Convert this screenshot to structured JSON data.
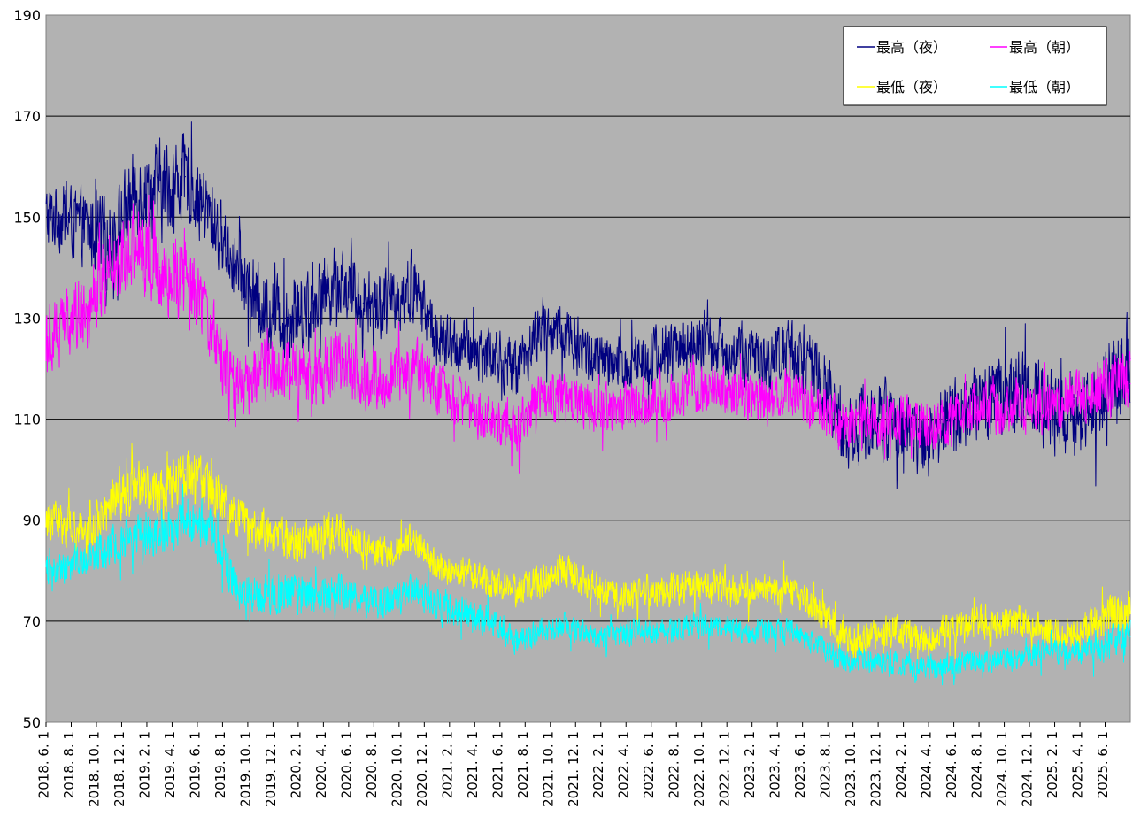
{
  "chart_data": {
    "type": "line",
    "title": "",
    "xlabel": "",
    "ylabel": "",
    "ylim": [
      50,
      190
    ],
    "yticks": [
      50,
      70,
      90,
      110,
      130,
      150,
      170,
      190
    ],
    "grid": "horizontal",
    "legend_position": "top-right",
    "plot_background": "#b2b2b2",
    "xticks": [
      "2018. 6. 1",
      "2018. 8. 1",
      "2018. 10. 1",
      "2018. 12. 1",
      "2019. 2. 1",
      "2019. 4. 1",
      "2019. 6. 1",
      "2019. 8. 1",
      "2019. 10. 1",
      "2019. 12. 1",
      "2020. 2. 1",
      "2020. 4. 1",
      "2020. 6. 1",
      "2020. 8. 1",
      "2020. 10. 1",
      "2020. 12. 1",
      "2021. 2. 1",
      "2021. 4. 1",
      "2021. 6. 1",
      "2021. 8. 1",
      "2021. 10. 1",
      "2021. 12. 1",
      "2022. 2. 1",
      "2022. 4. 1",
      "2022. 6. 1",
      "2022. 8. 1",
      "2022. 10. 1",
      "2022. 12. 1",
      "2023. 2. 1",
      "2023. 4. 1",
      "2023. 6. 1",
      "2023. 8. 1",
      "2023. 10. 1",
      "2023. 12. 1",
      "2024. 2. 1",
      "2024. 4. 1",
      "2024. 6. 1",
      "2024. 8. 1",
      "2024. 10. 1",
      "2024. 12. 1",
      "2025. 2. 1",
      "2025. 4. 1",
      "2025. 6. 1"
    ],
    "x_start": "2018-06-01",
    "x_end": "2025-07-15",
    "series": [
      {
        "name": "最高（夜）",
        "color": "#000080",
        "dates": [
          "2018-07-01",
          "2018-09-01",
          "2018-11-01",
          "2019-01-01",
          "2019-03-01",
          "2019-05-01",
          "2019-07-01",
          "2019-09-01",
          "2019-11-01",
          "2020-01-01",
          "2020-03-01",
          "2020-05-01",
          "2020-07-01",
          "2020-09-01",
          "2020-11-01",
          "2021-01-01",
          "2021-03-01",
          "2021-05-01",
          "2021-07-01",
          "2021-09-01",
          "2021-11-01",
          "2022-01-01",
          "2022-03-01",
          "2022-05-01",
          "2022-07-01",
          "2022-09-01",
          "2022-11-01",
          "2023-01-01",
          "2023-03-01",
          "2023-05-01",
          "2023-07-01",
          "2023-09-01",
          "2023-11-01",
          "2024-01-01",
          "2024-03-01",
          "2024-05-01",
          "2024-07-01",
          "2024-09-01",
          "2024-11-01",
          "2025-01-01",
          "2025-03-01",
          "2025-05-01",
          "2025-07-15"
        ],
        "values": [
          150,
          148,
          145,
          155,
          155,
          158,
          150,
          140,
          132,
          130,
          133,
          138,
          133,
          133,
          136,
          125,
          124,
          123,
          120,
          128,
          127,
          122,
          120,
          122,
          123,
          125,
          124,
          122,
          122,
          124,
          118,
          107,
          110,
          110,
          106,
          109,
          113,
          114,
          116,
          113,
          110,
          115,
          122
        ],
        "range": [
          8,
          9,
          10,
          10,
          12,
          10,
          9,
          8,
          9,
          9,
          9,
          9,
          8,
          8,
          8,
          7,
          7,
          7,
          7,
          7,
          7,
          7,
          7,
          7,
          8,
          7,
          7,
          7,
          7,
          8,
          9,
          9,
          10,
          9,
          9,
          10,
          10,
          10,
          10,
          10,
          10,
          11,
          12
        ]
      },
      {
        "name": "最高（朝）",
        "color": "#ff00ff",
        "dates": [
          "2018-07-01",
          "2018-09-01",
          "2018-11-01",
          "2019-01-01",
          "2019-03-01",
          "2019-05-01",
          "2019-07-01",
          "2019-09-01",
          "2019-11-01",
          "2020-01-01",
          "2020-03-01",
          "2020-05-01",
          "2020-07-01",
          "2020-09-01",
          "2020-11-01",
          "2021-01-01",
          "2021-03-01",
          "2021-05-01",
          "2021-07-01",
          "2021-09-01",
          "2021-11-01",
          "2022-01-01",
          "2022-03-01",
          "2022-05-01",
          "2022-07-01",
          "2022-09-01",
          "2022-11-01",
          "2023-01-01",
          "2023-03-01",
          "2023-05-01",
          "2023-07-01",
          "2023-09-01",
          "2023-11-01",
          "2024-01-01",
          "2024-03-01",
          "2024-05-01",
          "2024-07-01",
          "2024-09-01",
          "2024-11-01",
          "2025-01-01",
          "2025-03-01",
          "2025-05-01",
          "2025-07-15"
        ],
        "values": [
          128,
          132,
          140,
          145,
          140,
          138,
          128,
          115,
          120,
          120,
          119,
          122,
          118,
          118,
          121,
          116,
          113,
          110,
          108,
          114,
          114,
          112,
          112,
          113,
          114,
          116,
          116,
          114,
          114,
          115,
          112,
          108,
          110,
          110,
          108,
          110,
          112,
          112,
          112,
          112,
          114,
          116,
          117
        ],
        "range": [
          9,
          9,
          10,
          10,
          11,
          10,
          9,
          8,
          8,
          8,
          8,
          8,
          7,
          7,
          7,
          6,
          6,
          6,
          6,
          6,
          6,
          6,
          6,
          6,
          6,
          6,
          6,
          6,
          6,
          6,
          6,
          6,
          6,
          6,
          6,
          6,
          6,
          6,
          6,
          6,
          6,
          7,
          8
        ]
      },
      {
        "name": "最低（夜）",
        "color": "#ffff00",
        "dates": [
          "2018-07-01",
          "2018-09-01",
          "2018-11-01",
          "2019-01-01",
          "2019-03-01",
          "2019-05-01",
          "2019-07-01",
          "2019-09-01",
          "2019-11-01",
          "2020-01-01",
          "2020-03-01",
          "2020-05-01",
          "2020-07-01",
          "2020-09-01",
          "2020-11-01",
          "2021-01-01",
          "2021-03-01",
          "2021-05-01",
          "2021-07-01",
          "2021-09-01",
          "2021-11-01",
          "2022-01-01",
          "2022-03-01",
          "2022-05-01",
          "2022-07-01",
          "2022-09-01",
          "2022-11-01",
          "2023-01-01",
          "2023-03-01",
          "2023-05-01",
          "2023-07-01",
          "2023-09-01",
          "2023-11-01",
          "2024-01-01",
          "2024-03-01",
          "2024-05-01",
          "2024-07-01",
          "2024-09-01",
          "2024-11-01",
          "2025-01-01",
          "2025-03-01",
          "2025-05-01",
          "2025-07-15"
        ],
        "values": [
          90,
          88,
          92,
          97,
          95,
          100,
          96,
          90,
          88,
          86,
          86,
          88,
          84,
          84,
          86,
          80,
          80,
          78,
          76,
          78,
          80,
          77,
          75,
          76,
          76,
          77,
          77,
          76,
          76,
          76,
          72,
          66,
          67,
          68,
          66,
          68,
          70,
          69,
          70,
          68,
          67,
          70,
          72
        ],
        "range": [
          5,
          5,
          6,
          6,
          6,
          6,
          6,
          5,
          5,
          5,
          5,
          5,
          5,
          4,
          4,
          4,
          4,
          4,
          4,
          4,
          4,
          4,
          4,
          4,
          4,
          4,
          4,
          4,
          4,
          4,
          4,
          4,
          4,
          4,
          4,
          4,
          4,
          4,
          4,
          4,
          4,
          5,
          6
        ]
      },
      {
        "name": "最低（朝）",
        "color": "#00ffff",
        "dates": [
          "2018-07-01",
          "2018-09-01",
          "2018-11-01",
          "2019-01-01",
          "2019-03-01",
          "2019-05-01",
          "2019-07-01",
          "2019-09-01",
          "2019-11-01",
          "2020-01-01",
          "2020-03-01",
          "2020-05-01",
          "2020-07-01",
          "2020-09-01",
          "2020-11-01",
          "2021-01-01",
          "2021-03-01",
          "2021-05-01",
          "2021-07-01",
          "2021-09-01",
          "2021-11-01",
          "2022-01-01",
          "2022-03-01",
          "2022-05-01",
          "2022-07-01",
          "2022-09-01",
          "2022-11-01",
          "2023-01-01",
          "2023-03-01",
          "2023-05-01",
          "2023-07-01",
          "2023-09-01",
          "2023-11-01",
          "2024-01-01",
          "2024-03-01",
          "2024-05-01",
          "2024-07-01",
          "2024-09-01",
          "2024-11-01",
          "2025-01-01",
          "2025-03-01",
          "2025-05-01",
          "2025-07-15"
        ],
        "values": [
          80,
          82,
          85,
          87,
          86,
          90,
          88,
          76,
          75,
          76,
          74,
          76,
          74,
          74,
          76,
          73,
          72,
          70,
          66,
          68,
          69,
          67,
          67,
          68,
          68,
          69,
          69,
          68,
          68,
          68,
          65,
          62,
          62,
          62,
          61,
          61,
          62,
          62,
          63,
          64,
          64,
          65,
          67
        ],
        "range": [
          4,
          4,
          5,
          5,
          5,
          5,
          5,
          5,
          5,
          5,
          5,
          4,
          4,
          4,
          4,
          4,
          4,
          4,
          3,
          3,
          3,
          3,
          3,
          3,
          3,
          3,
          3,
          3,
          3,
          3,
          3,
          3,
          3,
          3,
          3,
          3,
          3,
          3,
          3,
          3,
          3,
          4,
          4
        ]
      }
    ]
  }
}
